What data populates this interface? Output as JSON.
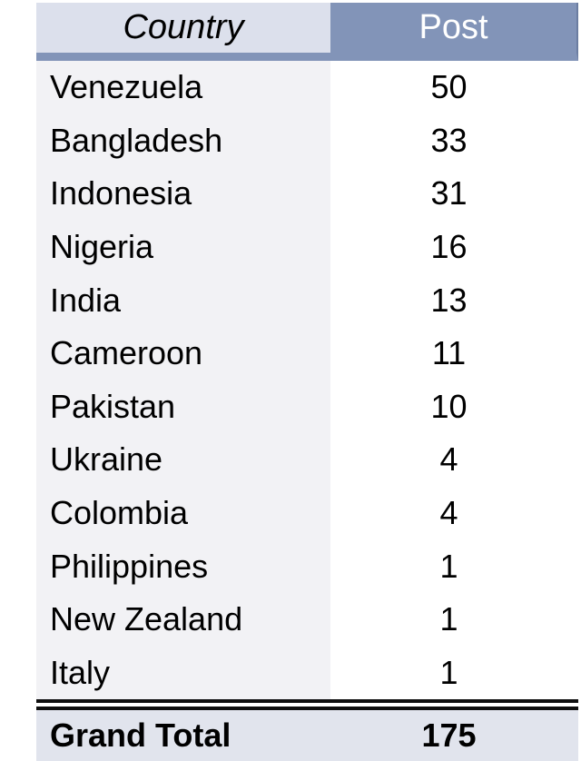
{
  "header": {
    "country": "Country",
    "post": "Post"
  },
  "grand_total": {
    "label": "Grand Total",
    "value": "175"
  },
  "chart_data": {
    "type": "table",
    "columns": [
      "Country",
      "Post"
    ],
    "rows": [
      [
        "Venezuela",
        50
      ],
      [
        "Bangladesh",
        33
      ],
      [
        "Indonesia",
        31
      ],
      [
        "Nigeria",
        16
      ],
      [
        "India",
        13
      ],
      [
        "Cameroon",
        11
      ],
      [
        "Pakistan",
        10
      ],
      [
        "Ukraine",
        4
      ],
      [
        "Colombia",
        4
      ],
      [
        "Philippines",
        1
      ],
      [
        "New Zealand",
        1
      ],
      [
        "Italy",
        1
      ]
    ],
    "total_row": [
      "Grand Total",
      175
    ],
    "layout": {
      "grid": "off",
      "country_column_align": "left",
      "post_column_align": "center"
    }
  },
  "colors": {
    "header_blue": "#8294b8",
    "header_light": "#dce0ec",
    "row_stripe": "#f2f2f5",
    "post_col_bg": "#ffffff",
    "total_bg": "#e1e4ed",
    "rule_color": "#0e0e0e",
    "header_text": "#ffffff",
    "body_text": "#000000"
  }
}
